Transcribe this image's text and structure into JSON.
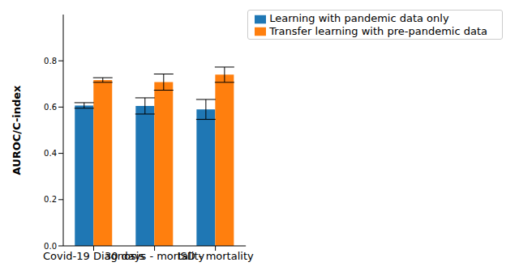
{
  "chart_data": {
    "type": "bar",
    "y_label": "AUROC/C-index",
    "categories": [
      "Covid-19 Diagnosis",
      "30 days - mortality",
      "ISD - mortality"
    ],
    "series": [
      {
        "name": "Learning with pandemic data only",
        "color": "#1f77b4",
        "values": [
          0.607,
          0.605,
          0.59
        ],
        "errors": [
          0.012,
          0.035,
          0.043
        ]
      },
      {
        "name": "Transfer learning with pre-pandemic data",
        "color": "#ff7f0e",
        "values": [
          0.717,
          0.708,
          0.74
        ],
        "errors": [
          0.01,
          0.035,
          0.033
        ]
      }
    ],
    "ylim": [
      0,
      1.0
    ],
    "yticks": [
      {
        "value": 0,
        "label": "0.0"
      },
      0.2,
      0.4,
      0.6,
      0.8
    ],
    "legend": "upper right",
    "grid": false
  }
}
